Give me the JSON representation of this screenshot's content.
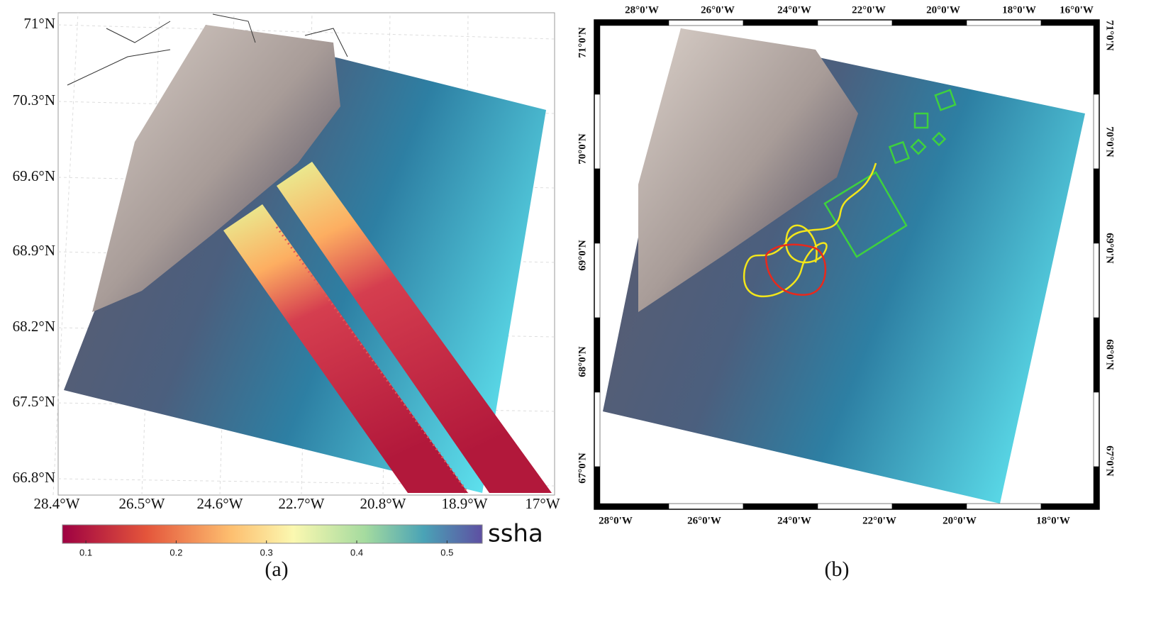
{
  "panel_a": {
    "lat_labels": [
      "71°N",
      "70.3°N",
      "69.6°N",
      "68.9°N",
      "68.2°N",
      "67.5°N",
      "66.8°N"
    ],
    "lon_labels": [
      "28.4°W",
      "26.5°W",
      "24.6°W",
      "22.7°W",
      "20.8°W",
      "18.9°W",
      "17°W"
    ],
    "colorbar": {
      "label": "ssha",
      "range": [
        0.074,
        0.539
      ],
      "ticks": [
        0.1,
        0.2,
        0.3,
        0.4,
        0.5
      ]
    },
    "caption": "(a)"
  },
  "panel_b": {
    "top_labels": [
      "28°0'W",
      "26°0'W",
      "24°0'W",
      "22°0'W",
      "20°0'W",
      "18°0'W",
      "16°0'W"
    ],
    "bottom_labels": [
      "28°0'W",
      "26°0'W",
      "24°0'W",
      "22°0'W",
      "20°0'W",
      "18°0'W"
    ],
    "left_labels": [
      "71°0'N",
      "70°0'N",
      "69°0'N",
      "68°0'N",
      "67°0'N"
    ],
    "right_labels": [
      "71°0'N",
      "70°0'N",
      "69°0'N",
      "68°0'N",
      "67°0'N"
    ],
    "caption": "(b)"
  }
}
